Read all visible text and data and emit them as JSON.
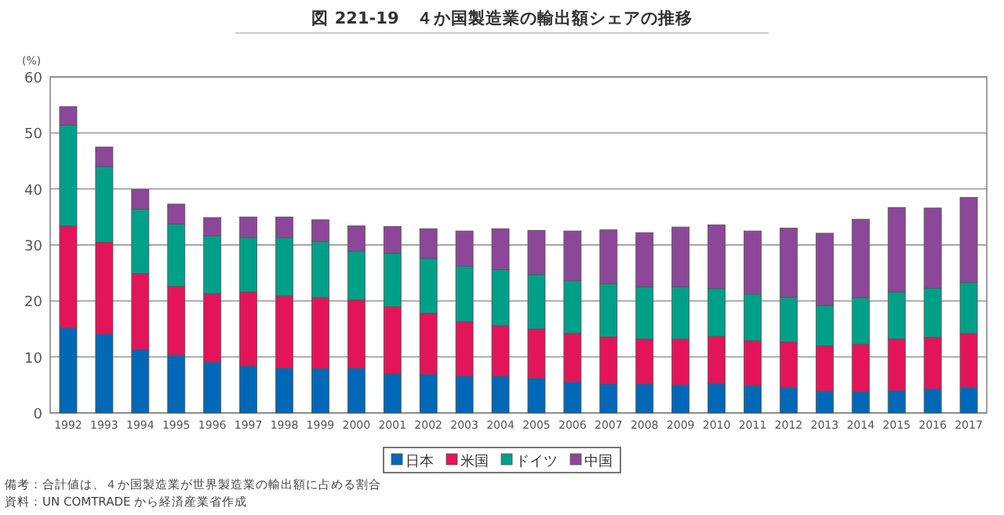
{
  "chart_data": {
    "type": "bar",
    "stacked": true,
    "title": "図 221-19　４か国製造業の輸出額シェアの推移",
    "ylabel": "(%)",
    "categories": [
      "1992",
      "1993",
      "1994",
      "1995",
      "1996",
      "1997",
      "1998",
      "1999",
      "2000",
      "2001",
      "2002",
      "2003",
      "2004",
      "2005",
      "2006",
      "2007",
      "2008",
      "2009",
      "2010",
      "2011",
      "2012",
      "2013",
      "2014",
      "2015",
      "2016",
      "2017"
    ],
    "series": [
      {
        "name": "日本",
        "color": "#0068b7",
        "values": [
          15.2,
          14.1,
          11.3,
          10.3,
          9.1,
          8.4,
          8.0,
          7.9,
          8.0,
          7.0,
          6.9,
          6.6,
          6.6,
          6.2,
          5.5,
          5.2,
          5.2,
          5.0,
          5.3,
          4.9,
          4.6,
          3.9,
          3.8,
          4.0,
          4.3,
          4.6
        ]
      },
      {
        "name": "米国",
        "color": "#e4145a",
        "values": [
          18.2,
          16.4,
          13.6,
          12.3,
          12.2,
          13.2,
          12.9,
          12.7,
          12.2,
          12.0,
          10.9,
          9.7,
          9.0,
          8.8,
          8.7,
          8.4,
          8.0,
          8.2,
          8.4,
          8.0,
          8.1,
          8.1,
          8.5,
          9.2,
          9.2,
          9.6
        ]
      },
      {
        "name": "ドイツ",
        "color": "#00a088",
        "values": [
          18.0,
          13.5,
          11.5,
          11.1,
          10.3,
          9.7,
          10.4,
          10.0,
          8.7,
          9.5,
          9.8,
          9.9,
          10.0,
          9.7,
          9.4,
          9.5,
          9.3,
          9.3,
          8.5,
          8.3,
          8.0,
          7.2,
          8.3,
          8.4,
          8.8,
          9.1
        ]
      },
      {
        "name": "中国",
        "color": "#8c4799",
        "values": [
          3.3,
          3.5,
          3.5,
          3.6,
          3.3,
          3.7,
          3.7,
          3.9,
          4.5,
          4.8,
          5.3,
          6.3,
          7.3,
          7.9,
          8.9,
          9.6,
          9.7,
          10.7,
          11.4,
          11.3,
          12.3,
          12.9,
          14.0,
          15.1,
          14.3,
          15.2
        ]
      }
    ],
    "ylim": [
      0,
      60
    ],
    "yticks": [
      0,
      10,
      20,
      30,
      40,
      50,
      60
    ],
    "grid": "y",
    "legend": "bottom",
    "annotations": [
      "備考：合計値は、４か国製造業が世界製造業の輸出額に占める割合",
      "資料：UN COMTRADE から経済産業省作成"
    ]
  }
}
